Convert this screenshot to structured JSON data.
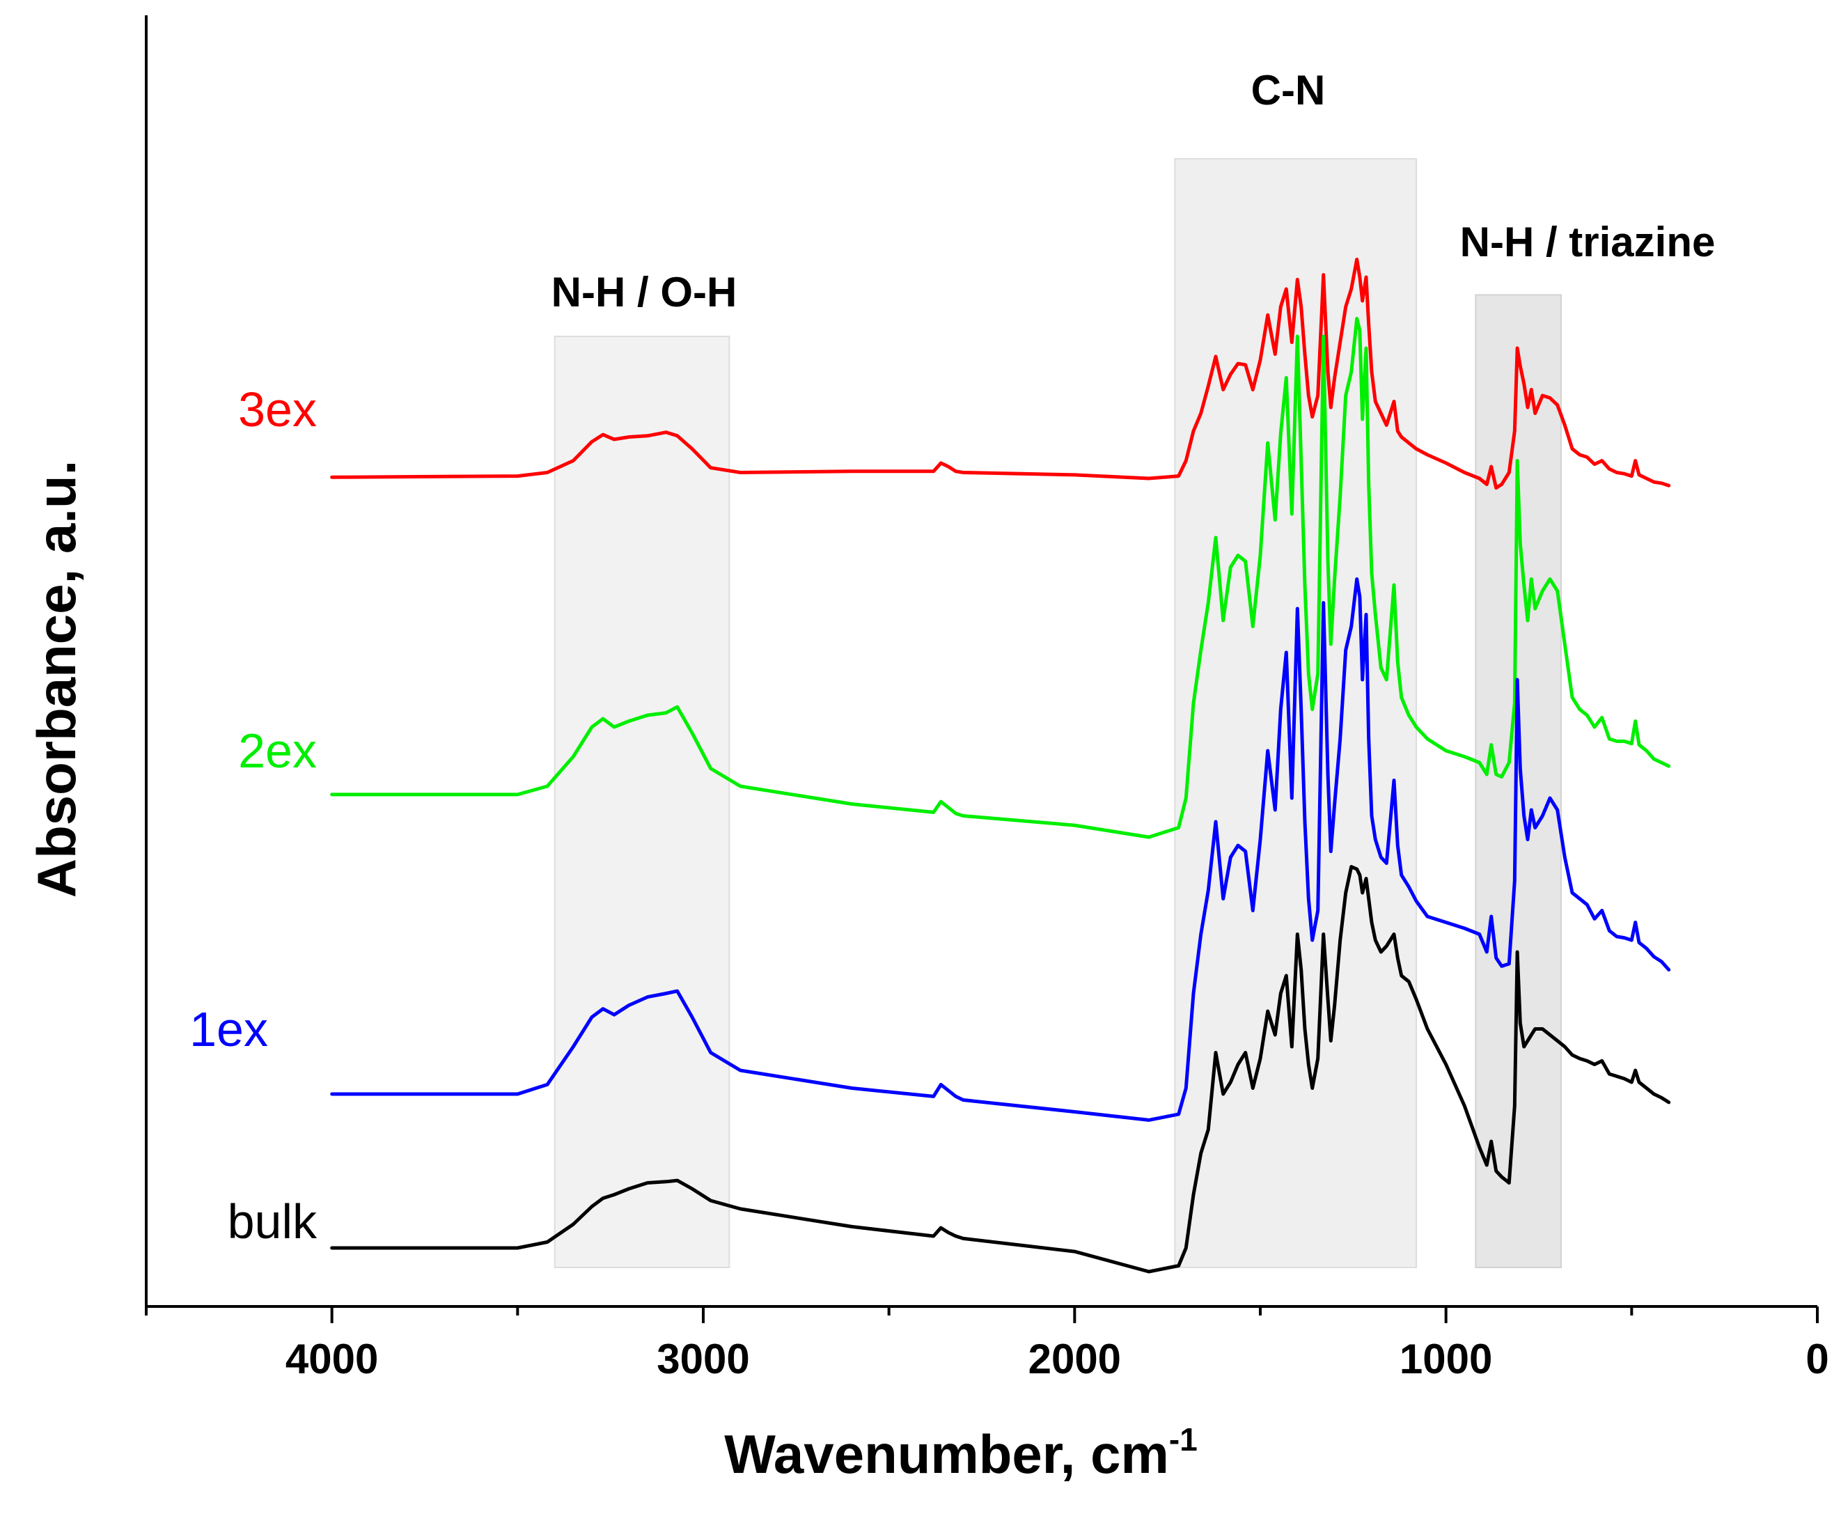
{
  "chart_data": {
    "type": "line",
    "title": "",
    "xlabel": "Wavenumber, cm",
    "xlabel_superscript": "-1",
    "ylabel": "Absorbance, a.u.",
    "x_reversed": true,
    "xlim": [
      4500,
      0
    ],
    "ylim": [
      0,
      100
    ],
    "x_ticks": [
      4000,
      3000,
      2000,
      1000,
      0
    ],
    "x_tick_labels": [
      "4000",
      "3000",
      "2000",
      "1000",
      "0"
    ],
    "grid": false,
    "bands": [
      {
        "name": "nh-oh-band",
        "label": "N-H / O-H",
        "from": 3400,
        "to": 2930,
        "top": 81
      },
      {
        "name": "cn-band",
        "label": "C-N",
        "from": 1730,
        "to": 1080,
        "top": 96
      },
      {
        "name": "nh-triazine-band",
        "label": "N-H / triazine",
        "from": 920,
        "to": 690,
        "top": 84.5
      }
    ],
    "series": [
      {
        "name": "3ex",
        "label": "3ex",
        "color": "#ff0000",
        "x": [
          4000,
          3500,
          3420,
          3350,
          3300,
          3270,
          3240,
          3200,
          3150,
          3100,
          3070,
          3030,
          2980,
          2900,
          2600,
          2380,
          2360,
          2340,
          2320,
          2300,
          2000,
          1800,
          1720,
          1700,
          1680,
          1660,
          1640,
          1620,
          1600,
          1580,
          1560,
          1540,
          1520,
          1500,
          1480,
          1460,
          1445,
          1430,
          1415,
          1400,
          1390,
          1380,
          1370,
          1360,
          1345,
          1330,
          1318,
          1310,
          1300,
          1285,
          1270,
          1255,
          1240,
          1232,
          1225,
          1215,
          1208,
          1200,
          1190,
          1175,
          1160,
          1140,
          1130,
          1120,
          1100,
          1080,
          1050,
          1000,
          950,
          910,
          890,
          878,
          865,
          850,
          830,
          815,
          808,
          800,
          790,
          780,
          770,
          760,
          740,
          720,
          700,
          680,
          660,
          640,
          620,
          600,
          580,
          560,
          540,
          520,
          500,
          490,
          480,
          460,
          440,
          420,
          400
        ],
        "y": [
          69.1,
          69.2,
          69.5,
          70.5,
          72.1,
          72.7,
          72.3,
          72.5,
          72.6,
          72.9,
          72.6,
          71.5,
          69.9,
          69.5,
          69.6,
          69.6,
          70.3,
          70.0,
          69.6,
          69.5,
          69.3,
          69.0,
          69.2,
          70.5,
          73.0,
          74.5,
          76.8,
          79.3,
          76.5,
          77.8,
          78.7,
          78.6,
          76.5,
          79.0,
          82.8,
          79.5,
          83.5,
          85.0,
          80.5,
          85.8,
          83.5,
          79.5,
          76.0,
          74.2,
          76.0,
          86.2,
          78.0,
          75.0,
          77.5,
          80.5,
          83.5,
          85.0,
          87.5,
          86.0,
          84.0,
          86.0,
          82.0,
          78.0,
          75.5,
          74.5,
          73.5,
          75.5,
          73.0,
          72.5,
          72.0,
          71.5,
          71.0,
          70.3,
          69.5,
          69.0,
          68.5,
          70.0,
          68.2,
          68.5,
          69.5,
          73.0,
          80.0,
          78.5,
          77.0,
          75.0,
          76.5,
          74.5,
          76.0,
          75.8,
          75.2,
          73.5,
          71.5,
          71.0,
          70.8,
          70.2,
          70.5,
          69.8,
          69.5,
          69.4,
          69.2,
          70.5,
          69.3,
          69.0,
          68.7,
          68.6,
          68.4
        ]
      },
      {
        "name": "2ex",
        "label": "2ex",
        "color": "#00ee00",
        "x": [
          4000,
          3500,
          3420,
          3350,
          3300,
          3270,
          3240,
          3200,
          3150,
          3100,
          3070,
          3030,
          2980,
          2900,
          2600,
          2380,
          2360,
          2340,
          2320,
          2300,
          2000,
          1800,
          1720,
          1700,
          1680,
          1660,
          1640,
          1620,
          1600,
          1580,
          1560,
          1540,
          1520,
          1500,
          1480,
          1460,
          1445,
          1430,
          1415,
          1400,
          1390,
          1380,
          1370,
          1360,
          1345,
          1330,
          1318,
          1310,
          1300,
          1285,
          1270,
          1255,
          1240,
          1232,
          1225,
          1215,
          1208,
          1200,
          1190,
          1175,
          1160,
          1140,
          1130,
          1120,
          1100,
          1080,
          1050,
          1000,
          950,
          910,
          890,
          878,
          865,
          850,
          830,
          815,
          808,
          800,
          790,
          780,
          770,
          760,
          740,
          720,
          700,
          680,
          660,
          640,
          620,
          600,
          580,
          560,
          540,
          520,
          500,
          490,
          480,
          460,
          440,
          420,
          400
        ],
        "y": [
          42.3,
          42.3,
          43.0,
          45.5,
          48.0,
          48.7,
          48.0,
          48.5,
          49.0,
          49.2,
          49.7,
          47.5,
          44.5,
          43.0,
          41.5,
          40.8,
          41.7,
          41.2,
          40.7,
          40.5,
          39.7,
          38.7,
          39.5,
          42.0,
          50.0,
          54.5,
          58.5,
          64.0,
          57.0,
          61.5,
          62.5,
          62.0,
          56.5,
          62.5,
          72.0,
          65.5,
          72.8,
          77.5,
          66.0,
          81.0,
          70.5,
          60.0,
          52.5,
          49.5,
          52.5,
          81.0,
          62.0,
          55.0,
          60.5,
          67.5,
          76.0,
          78.0,
          82.5,
          81.5,
          74.0,
          80.0,
          68.5,
          61.0,
          57.5,
          53.0,
          52.0,
          60.0,
          53.5,
          50.5,
          49.0,
          48.0,
          47.0,
          46.0,
          45.5,
          45.0,
          44.0,
          46.5,
          44.0,
          43.8,
          45.0,
          50.0,
          70.5,
          63.5,
          60.0,
          57.0,
          60.5,
          58.0,
          59.5,
          60.5,
          59.5,
          55.0,
          50.5,
          49.5,
          49.0,
          48.0,
          48.8,
          47.0,
          46.8,
          46.8,
          46.6,
          48.5,
          46.5,
          46.0,
          45.3,
          45.0,
          44.7
        ]
      },
      {
        "name": "1ex",
        "label": "1ex",
        "color": "#0000ff",
        "x": [
          4000,
          3500,
          3420,
          3350,
          3300,
          3270,
          3240,
          3200,
          3150,
          3100,
          3070,
          3030,
          2980,
          2900,
          2600,
          2380,
          2360,
          2340,
          2320,
          2300,
          2000,
          1800,
          1720,
          1700,
          1680,
          1660,
          1640,
          1620,
          1600,
          1580,
          1560,
          1540,
          1520,
          1500,
          1480,
          1460,
          1445,
          1430,
          1415,
          1400,
          1390,
          1380,
          1370,
          1360,
          1345,
          1330,
          1318,
          1310,
          1300,
          1285,
          1270,
          1255,
          1240,
          1232,
          1225,
          1215,
          1208,
          1200,
          1190,
          1175,
          1160,
          1140,
          1130,
          1120,
          1100,
          1080,
          1050,
          1000,
          950,
          910,
          890,
          878,
          865,
          850,
          830,
          815,
          808,
          800,
          790,
          780,
          770,
          760,
          740,
          720,
          700,
          680,
          660,
          640,
          620,
          600,
          580,
          560,
          540,
          520,
          500,
          490,
          480,
          460,
          440,
          420,
          400
        ],
        "y": [
          17.0,
          17.0,
          17.8,
          21.0,
          23.5,
          24.2,
          23.7,
          24.5,
          25.2,
          25.5,
          25.7,
          23.5,
          20.5,
          19.0,
          17.5,
          16.8,
          17.8,
          17.3,
          16.8,
          16.5,
          15.5,
          14.8,
          15.3,
          17.5,
          25.5,
          30.5,
          34.2,
          40.0,
          33.5,
          37.0,
          38.0,
          37.5,
          32.5,
          38.5,
          46.0,
          41.0,
          49.5,
          54.3,
          42.0,
          58.0,
          49.5,
          40.0,
          33.5,
          30.0,
          32.5,
          58.5,
          44.0,
          37.5,
          41.5,
          47.0,
          54.5,
          56.5,
          60.5,
          59.0,
          52.0,
          57.5,
          47.0,
          40.5,
          38.5,
          37.0,
          36.5,
          43.5,
          38.0,
          35.5,
          34.5,
          33.3,
          32.0,
          31.5,
          31.0,
          30.5,
          29.0,
          32.0,
          28.5,
          27.8,
          28.0,
          35.0,
          52.0,
          44.5,
          40.5,
          38.5,
          41.0,
          39.5,
          40.5,
          42.0,
          41.0,
          37.0,
          34.0,
          33.5,
          33.0,
          31.8,
          32.5,
          30.8,
          30.3,
          30.2,
          30.0,
          31.5,
          29.8,
          29.3,
          28.6,
          28.2,
          27.5
        ]
      },
      {
        "name": "bulk",
        "label": "bulk",
        "color": "#000000",
        "x": [
          4000,
          3500,
          3420,
          3350,
          3300,
          3270,
          3240,
          3200,
          3150,
          3100,
          3070,
          3030,
          2980,
          2900,
          2600,
          2380,
          2360,
          2340,
          2320,
          2300,
          2000,
          1800,
          1720,
          1700,
          1680,
          1660,
          1640,
          1620,
          1600,
          1580,
          1560,
          1540,
          1520,
          1500,
          1480,
          1460,
          1445,
          1430,
          1415,
          1400,
          1390,
          1380,
          1370,
          1360,
          1345,
          1330,
          1318,
          1310,
          1300,
          1285,
          1270,
          1255,
          1240,
          1232,
          1225,
          1215,
          1208,
          1200,
          1190,
          1175,
          1160,
          1140,
          1130,
          1120,
          1100,
          1080,
          1050,
          1000,
          950,
          910,
          890,
          878,
          865,
          850,
          830,
          815,
          808,
          800,
          790,
          780,
          770,
          760,
          740,
          720,
          700,
          680,
          660,
          640,
          620,
          600,
          580,
          560,
          540,
          520,
          500,
          490,
          480,
          460,
          440,
          420,
          400
        ],
        "y": [
          4.0,
          4.0,
          4.5,
          6.0,
          7.5,
          8.2,
          8.5,
          9.0,
          9.5,
          9.6,
          9.7,
          9.0,
          8.0,
          7.3,
          5.8,
          5.0,
          5.7,
          5.3,
          5.0,
          4.8,
          3.7,
          2.0,
          2.5,
          4.0,
          8.5,
          12.0,
          14.0,
          20.5,
          17.0,
          18.0,
          19.5,
          20.5,
          17.5,
          20.0,
          24.0,
          22.0,
          25.5,
          27.0,
          21.0,
          30.5,
          27.5,
          22.5,
          19.5,
          17.5,
          20.0,
          30.5,
          25.0,
          21.5,
          24.5,
          30.0,
          34.0,
          36.2,
          36.0,
          35.5,
          34.0,
          35.2,
          33.5,
          31.5,
          30.0,
          29.0,
          29.5,
          30.5,
          28.5,
          27.0,
          26.5,
          25.0,
          22.5,
          19.5,
          16.0,
          12.5,
          11.0,
          13.0,
          10.5,
          10.0,
          9.5,
          16.0,
          29.0,
          23.0,
          21.0,
          21.5,
          22.0,
          22.5,
          22.5,
          22.0,
          21.5,
          21.0,
          20.3,
          20.0,
          19.8,
          19.5,
          19.8,
          18.7,
          18.5,
          18.3,
          18.0,
          19.0,
          18.0,
          17.5,
          17.0,
          16.7,
          16.3
        ]
      }
    ]
  }
}
